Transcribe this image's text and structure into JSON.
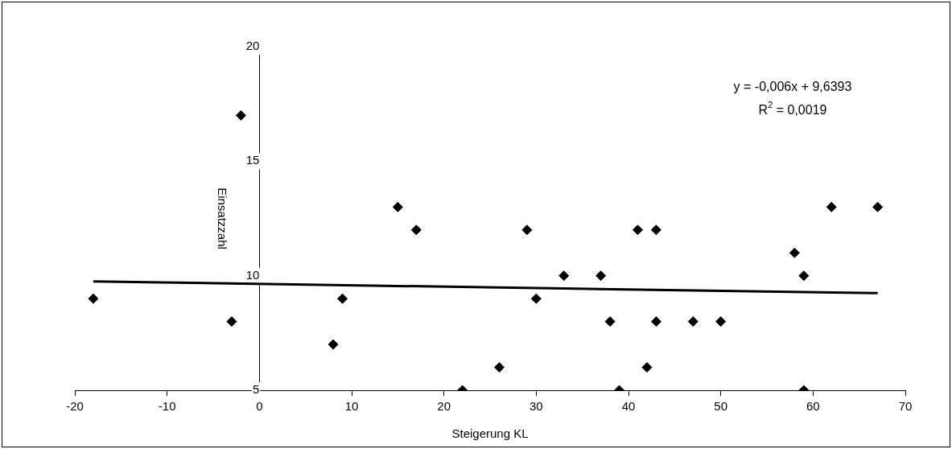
{
  "chart_data": {
    "type": "scatter",
    "xlabel": "Steigerung KL",
    "ylabel": "Einsatzzahl",
    "xlim": [
      -20,
      70
    ],
    "xticks": [
      -20,
      -10,
      0,
      10,
      20,
      30,
      40,
      50,
      60,
      70
    ],
    "ylim": [
      5,
      20
    ],
    "yticks": [
      5,
      10,
      15,
      20
    ],
    "grid": false,
    "legend": false,
    "marker": "diamond",
    "series": [
      {
        "color": "#000000",
        "x": [
          -18,
          -3,
          -2,
          8,
          9,
          15,
          17,
          22,
          26,
          29,
          30,
          33,
          37,
          38,
          39,
          41,
          42,
          43,
          43,
          47,
          50,
          58,
          59,
          59,
          62,
          67
        ],
        "values": [
          9,
          8,
          17,
          7,
          9,
          13,
          12,
          5,
          6,
          12,
          9,
          10,
          10,
          8,
          5,
          12,
          6,
          12,
          8,
          8,
          8,
          11,
          10,
          5,
          13,
          13
        ]
      },
      {
        "type": "line",
        "color": "#000000",
        "line_style": "solid",
        "marker": "none",
        "x": [
          -18,
          67
        ],
        "values": [
          9.75,
          9.24
        ]
      }
    ],
    "annotations": [
      "y = -0,006x + 9,6393",
      "R$^{2}$ = 0,0019"
    ]
  }
}
